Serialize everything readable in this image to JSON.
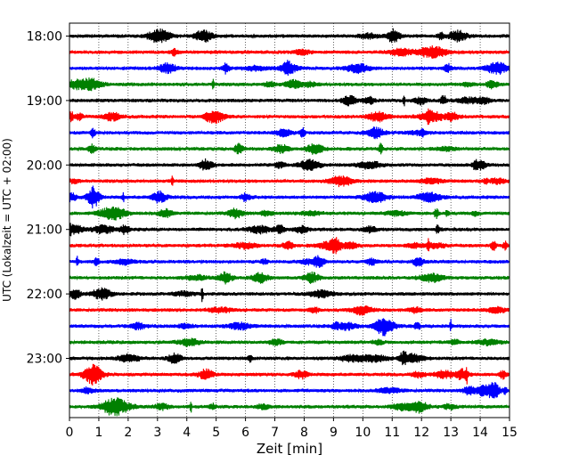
{
  "chart_data": {
    "type": "line",
    "title": "",
    "xlabel": "Zeit  [min]",
    "ylabel": "UTC (Lokalzeit = UTC + 02:00)",
    "xlim": [
      0,
      15
    ],
    "x_ticks": [
      "0",
      "1",
      "2",
      "3",
      "4",
      "5",
      "6",
      "7",
      "8",
      "9",
      "10",
      "11",
      "12",
      "13",
      "14",
      "15"
    ],
    "y_ticks": [
      "18:00",
      "19:00",
      "20:00",
      "21:00",
      "22:00",
      "23:00"
    ],
    "grid": "vertical dotted",
    "trace_interval_minutes": 15,
    "trace_colors": [
      "#000000",
      "#ff0000",
      "#0000ff",
      "#008000"
    ],
    "traces": [
      {
        "start": "18:00"
      },
      {
        "start": "18:15"
      },
      {
        "start": "18:30"
      },
      {
        "start": "18:45"
      },
      {
        "start": "19:00"
      },
      {
        "start": "19:15"
      },
      {
        "start": "19:30"
      },
      {
        "start": "19:45"
      },
      {
        "start": "20:00"
      },
      {
        "start": "20:15"
      },
      {
        "start": "20:30"
      },
      {
        "start": "20:45"
      },
      {
        "start": "21:00"
      },
      {
        "start": "21:15"
      },
      {
        "start": "21:30"
      },
      {
        "start": "21:45"
      },
      {
        "start": "22:00"
      },
      {
        "start": "22:15"
      },
      {
        "start": "22:30"
      },
      {
        "start": "22:45"
      },
      {
        "start": "23:00"
      },
      {
        "start": "23:15"
      },
      {
        "start": "23:30"
      },
      {
        "start": "23:45"
      }
    ]
  }
}
